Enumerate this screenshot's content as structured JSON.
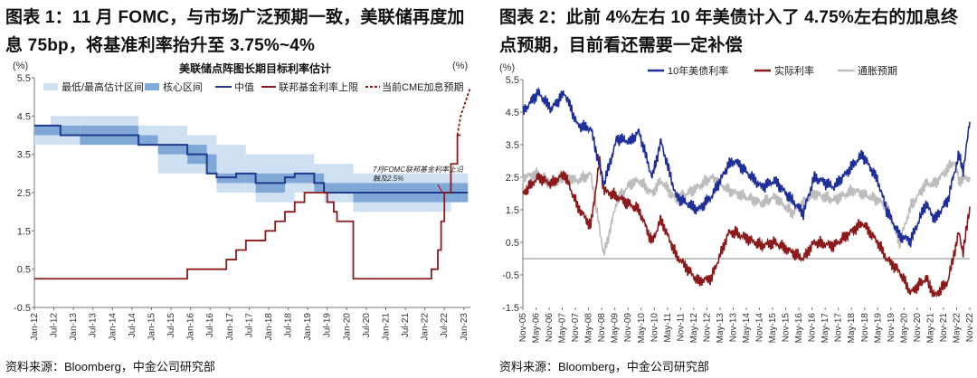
{
  "left": {
    "figure_title": "图表 1：11 月 FOMC，与市场广泛预期一致，美联储再度加息 75bp，将基准利率抬升至 3.75%~4%",
    "source": "资料来源：Bloomberg，中金公司研究部",
    "chart_data": {
      "type": "line",
      "title": "美联储点阵图长期目标利率估计",
      "y_unit_left": "(%)",
      "y_unit_right": "(%)",
      "ylim": [
        -0.5,
        5.5
      ],
      "yticks": [
        "5.5",
        "4.5",
        "3.5",
        "2.5",
        "1.5",
        "0.5",
        "-0.5"
      ],
      "xlim": [
        "2012-01",
        "2023-03"
      ],
      "xticks": [
        "Jan-12",
        "Jul-12",
        "Jan-13",
        "Jul-13",
        "Jan-14",
        "Jul-14",
        "Jan-15",
        "Jul-15",
        "Jan-16",
        "Jul-16",
        "Jan-17",
        "Jul-17",
        "Jan-18",
        "Jul-18",
        "Jan-19",
        "Jul-19",
        "Jan-20",
        "Jul-20",
        "Jan-21",
        "Jul-21",
        "Jan-22",
        "Jul-22",
        "Jan-23"
      ],
      "legend": [
        "最低/最高估计区间",
        "核心区间",
        "中值",
        "联邦基金利率上限",
        "当前CME加息预期"
      ],
      "annotation": "7月FOMC联邦基金利率上沿触及2.5%",
      "colors": {
        "range": "#cfe0f3",
        "core": "#7fa8d6",
        "median": "#1f3a8f",
        "ffr": "#8b1a1a",
        "cme": "#8b1a1a"
      },
      "dot_plot": [
        {
          "date": "2012-01",
          "low": 3.75,
          "high": 4.25,
          "core_low": 4.0,
          "core_high": 4.25,
          "median": 4.25
        },
        {
          "date": "2012-06",
          "low": 3.75,
          "high": 4.5,
          "core_low": 4.0,
          "core_high": 4.25,
          "median": 4.25
        },
        {
          "date": "2012-09",
          "low": 3.75,
          "high": 4.5,
          "core_low": 4.0,
          "core_high": 4.25,
          "median": 4.0
        },
        {
          "date": "2013-03",
          "low": 3.75,
          "high": 4.5,
          "core_low": 3.75,
          "core_high": 4.25,
          "median": 4.0
        },
        {
          "date": "2014-09",
          "low": 3.75,
          "high": 4.25,
          "core_low": 3.75,
          "core_high": 4.0,
          "median": 3.75
        },
        {
          "date": "2015-03",
          "low": 3.0,
          "high": 4.25,
          "core_low": 3.5,
          "core_high": 3.75,
          "median": 3.75
        },
        {
          "date": "2015-12",
          "low": 3.0,
          "high": 4.0,
          "core_low": 3.25,
          "core_high": 3.75,
          "median": 3.5
        },
        {
          "date": "2016-06",
          "low": 3.0,
          "high": 4.0,
          "core_low": 3.0,
          "core_high": 3.5,
          "median": 3.0
        },
        {
          "date": "2016-09",
          "low": 2.5,
          "high": 3.75,
          "core_low": 2.75,
          "core_high": 3.0,
          "median": 2.9
        },
        {
          "date": "2017-03",
          "low": 2.5,
          "high": 3.75,
          "core_low": 2.75,
          "core_high": 3.0,
          "median": 3.0
        },
        {
          "date": "2017-06",
          "low": 2.5,
          "high": 3.5,
          "core_low": 2.75,
          "core_high": 3.0,
          "median": 3.0
        },
        {
          "date": "2017-09",
          "low": 2.25,
          "high": 3.5,
          "core_low": 2.5,
          "core_high": 3.0,
          "median": 2.75
        },
        {
          "date": "2018-06",
          "low": 2.25,
          "high": 3.5,
          "core_low": 2.75,
          "core_high": 3.0,
          "median": 2.9
        },
        {
          "date": "2018-09",
          "low": 2.5,
          "high": 3.5,
          "core_low": 2.75,
          "core_high": 3.0,
          "median": 3.0
        },
        {
          "date": "2019-03",
          "low": 2.5,
          "high": 3.25,
          "core_low": 2.5,
          "core_high": 3.0,
          "median": 2.75
        },
        {
          "date": "2019-06",
          "low": 2.25,
          "high": 3.25,
          "core_low": 2.5,
          "core_high": 2.75,
          "median": 2.5
        },
        {
          "date": "2020-03",
          "low": 2.0,
          "high": 3.0,
          "core_low": 2.25,
          "core_high": 2.75,
          "median": 2.5
        },
        {
          "date": "2022-06",
          "low": 2.0,
          "high": 3.0,
          "core_low": 2.25,
          "core_high": 2.75,
          "median": 2.5
        },
        {
          "date": "2022-09",
          "low": 2.25,
          "high": 3.0,
          "core_low": 2.25,
          "core_high": 2.75,
          "median": 2.5
        },
        {
          "date": "2022-12",
          "low": 2.25,
          "high": 3.0,
          "core_low": 2.25,
          "core_high": 2.75,
          "median": 2.5
        }
      ],
      "ffr_upper": [
        [
          "2012-01",
          0.25
        ],
        [
          "2015-12",
          0.5
        ],
        [
          "2016-12",
          0.75
        ],
        [
          "2017-03",
          1.0
        ],
        [
          "2017-06",
          1.25
        ],
        [
          "2017-12",
          1.5
        ],
        [
          "2018-03",
          1.75
        ],
        [
          "2018-06",
          2.0
        ],
        [
          "2018-09",
          2.25
        ],
        [
          "2018-12",
          2.5
        ],
        [
          "2019-07",
          2.25
        ],
        [
          "2019-09",
          2.0
        ],
        [
          "2019-10",
          1.75
        ],
        [
          "2020-03",
          0.25
        ],
        [
          "2022-03",
          0.5
        ],
        [
          "2022-05",
          1.0
        ],
        [
          "2022-06",
          1.75
        ],
        [
          "2022-07",
          2.5
        ],
        [
          "2022-09",
          3.25
        ],
        [
          "2022-11",
          4.0
        ],
        [
          "2022-12",
          4.0
        ]
      ],
      "cme_expectation": [
        [
          "2022-11",
          4.0
        ],
        [
          "2022-12",
          4.5
        ],
        [
          "2023-01",
          4.75
        ],
        [
          "2023-02",
          5.0
        ],
        [
          "2023-03",
          5.25
        ]
      ]
    }
  },
  "right": {
    "figure_title": "图表 2：此前 4%左右 10 年美债计入了 4.75%左右的加息终点预期，目前看还需要一定补偿",
    "source": "资料来源：Bloomberg，中金公司研究部",
    "chart_data": {
      "type": "line",
      "y_unit": "(%)",
      "ylim": [
        -1.5,
        5.5
      ],
      "yticks": [
        "5.5",
        "4.5",
        "3.5",
        "2.5",
        "1.5",
        "0.5",
        "-0.5",
        "-1.5"
      ],
      "xlim": [
        "2005-11",
        "2022-11"
      ],
      "xticks": [
        "Nov-05",
        "May-06",
        "Nov-06",
        "May-07",
        "Nov-07",
        "May-08",
        "Nov-08",
        "May-09",
        "Nov-09",
        "May-10",
        "Nov-10",
        "May-11",
        "Nov-11",
        "May-12",
        "Nov-12",
        "May-13",
        "Nov-13",
        "May-14",
        "Nov-14",
        "May-15",
        "Nov-15",
        "May-16",
        "Nov-16",
        "May-17",
        "Nov-17",
        "May-18",
        "Nov-18",
        "May-19",
        "Nov-19",
        "May-20",
        "Nov-20",
        "May-21",
        "Nov-21",
        "May-22",
        "Nov-22"
      ],
      "colors": {
        "nominal": "#1f2f9a",
        "real": "#8b1a1a",
        "breakeven": "#bdbdbd"
      },
      "series": [
        {
          "name": "10年美债利率",
          "points": [
            [
              "2005-11",
              4.5
            ],
            [
              "2006-06",
              5.1
            ],
            [
              "2006-12",
              4.6
            ],
            [
              "2007-06",
              5.1
            ],
            [
              "2007-12",
              4.1
            ],
            [
              "2008-06",
              4.0
            ],
            [
              "2008-12",
              2.3
            ],
            [
              "2009-06",
              3.7
            ],
            [
              "2009-12",
              3.6
            ],
            [
              "2010-04",
              3.9
            ],
            [
              "2010-10",
              2.5
            ],
            [
              "2011-02",
              3.6
            ],
            [
              "2011-09",
              1.9
            ],
            [
              "2012-07",
              1.5
            ],
            [
              "2013-01",
              1.9
            ],
            [
              "2013-09",
              2.9
            ],
            [
              "2013-12",
              3.0
            ],
            [
              "2014-12",
              2.2
            ],
            [
              "2015-06",
              2.4
            ],
            [
              "2016-07",
              1.4
            ],
            [
              "2016-12",
              2.5
            ],
            [
              "2017-09",
              2.2
            ],
            [
              "2018-10",
              3.2
            ],
            [
              "2019-05",
              2.4
            ],
            [
              "2019-09",
              1.5
            ],
            [
              "2020-03",
              0.7
            ],
            [
              "2020-08",
              0.55
            ],
            [
              "2021-03",
              1.7
            ],
            [
              "2021-07",
              1.2
            ],
            [
              "2022-01",
              1.8
            ],
            [
              "2022-06",
              3.2
            ],
            [
              "2022-08",
              2.7
            ],
            [
              "2022-11",
              4.2
            ]
          ]
        },
        {
          "name": "实际利率",
          "points": [
            [
              "2005-11",
              2.0
            ],
            [
              "2006-06",
              2.5
            ],
            [
              "2006-12",
              2.3
            ],
            [
              "2007-06",
              2.6
            ],
            [
              "2007-12",
              1.6
            ],
            [
              "2008-06",
              1.0
            ],
            [
              "2008-10",
              3.0
            ],
            [
              "2008-12",
              2.1
            ],
            [
              "2009-06",
              1.9
            ],
            [
              "2010-04",
              1.5
            ],
            [
              "2010-10",
              0.5
            ],
            [
              "2011-02",
              1.2
            ],
            [
              "2011-09",
              0.1
            ],
            [
              "2012-07",
              -0.7
            ],
            [
              "2013-01",
              -0.6
            ],
            [
              "2013-09",
              0.8
            ],
            [
              "2013-12",
              0.8
            ],
            [
              "2014-12",
              0.4
            ],
            [
              "2015-06",
              0.5
            ],
            [
              "2016-07",
              0.0
            ],
            [
              "2016-12",
              0.5
            ],
            [
              "2017-09",
              0.4
            ],
            [
              "2018-10",
              1.1
            ],
            [
              "2019-05",
              0.5
            ],
            [
              "2019-09",
              0.0
            ],
            [
              "2020-03",
              -0.4
            ],
            [
              "2020-08",
              -1.05
            ],
            [
              "2021-03",
              -0.6
            ],
            [
              "2021-07",
              -1.15
            ],
            [
              "2022-01",
              -0.7
            ],
            [
              "2022-06",
              0.8
            ],
            [
              "2022-08",
              0.2
            ],
            [
              "2022-11",
              1.6
            ]
          ]
        },
        {
          "name": "通胀预期",
          "points": [
            [
              "2005-11",
              2.5
            ],
            [
              "2006-06",
              2.6
            ],
            [
              "2006-12",
              2.3
            ],
            [
              "2007-06",
              2.5
            ],
            [
              "2007-12",
              2.4
            ],
            [
              "2008-06",
              2.6
            ],
            [
              "2008-12",
              0.1
            ],
            [
              "2009-06",
              1.8
            ],
            [
              "2009-12",
              2.3
            ],
            [
              "2010-04",
              2.4
            ],
            [
              "2010-10",
              2.0
            ],
            [
              "2011-02",
              2.4
            ],
            [
              "2011-09",
              1.8
            ],
            [
              "2012-07",
              2.2
            ],
            [
              "2013-01",
              2.5
            ],
            [
              "2013-09",
              2.1
            ],
            [
              "2014-12",
              1.7
            ],
            [
              "2015-06",
              1.9
            ],
            [
              "2016-02",
              1.4
            ],
            [
              "2016-12",
              2.0
            ],
            [
              "2017-09",
              1.8
            ],
            [
              "2018-06",
              2.1
            ],
            [
              "2019-05",
              1.8
            ],
            [
              "2019-09",
              1.6
            ],
            [
              "2020-03",
              0.5
            ],
            [
              "2020-08",
              1.6
            ],
            [
              "2021-03",
              2.3
            ],
            [
              "2021-07",
              2.3
            ],
            [
              "2022-04",
              3.0
            ],
            [
              "2022-06",
              2.4
            ],
            [
              "2022-11",
              2.5
            ]
          ]
        }
      ]
    }
  }
}
